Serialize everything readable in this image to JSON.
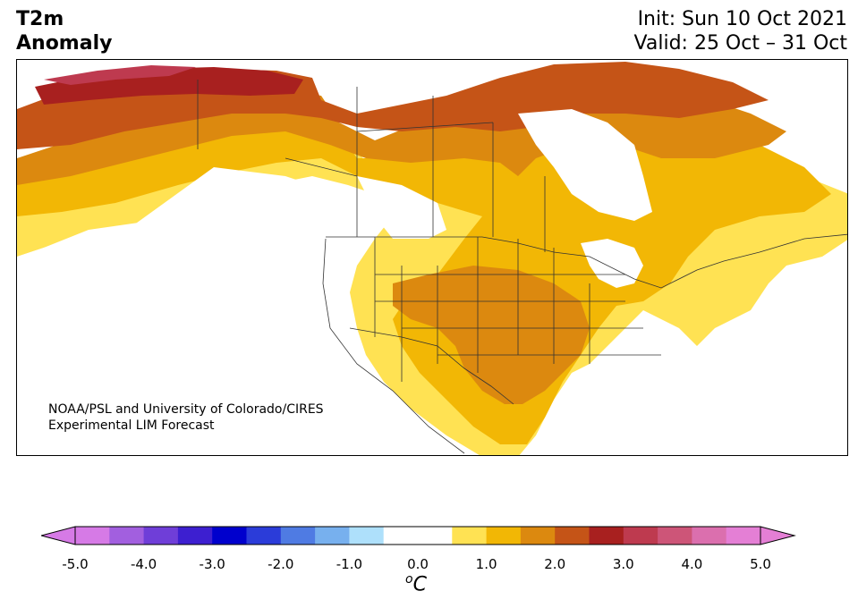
{
  "title": {
    "line1": "T2m",
    "line2": "Anomaly"
  },
  "dates": {
    "init": "Init: Sun 10 Oct 2021",
    "valid": "Valid: 25 Oct – 31 Oct"
  },
  "credit": {
    "line1": "NOAA/PSL and University of Colorado/CIRES",
    "line2": "Experimental LIM Forecast"
  },
  "map": {
    "region": "North America",
    "variable": "2m temperature anomaly",
    "land_color": "#ffffff",
    "border_color": "#333333"
  },
  "colorbar": {
    "unit_symbol": "o",
    "unit_letter": "C",
    "ticks": [
      "-5.0",
      "-4.0",
      "-3.0",
      "-2.0",
      "-1.0",
      "0.0",
      "1.0",
      "2.0",
      "3.0",
      "4.0",
      "5.0"
    ],
    "min": -5.0,
    "max": 5.0,
    "step": 0.5,
    "colors": [
      "#d67ae6",
      "#a25fdf",
      "#6f3ed8",
      "#3d1fd0",
      "#0000cd",
      "#2b3cd9",
      "#4f7be3",
      "#77b0ee",
      "#aee0fb",
      "#ffffff",
      "#ffffff",
      "#ffe253",
      "#f2b705",
      "#dc890f",
      "#c55417",
      "#a8201f",
      "#be3a4f",
      "#cd5578",
      "#db6fae",
      "#e47fd5"
    ],
    "under_color": "#d67ae6",
    "over_color": "#e47fd5"
  },
  "anomaly_levels": {
    "level_0_5": "#ffe253",
    "level_1_0": "#f2b705",
    "level_1_5": "#dc890f",
    "level_2_0": "#c55417",
    "level_2_5": "#a8201f",
    "level_3_0": "#be3a4f"
  }
}
